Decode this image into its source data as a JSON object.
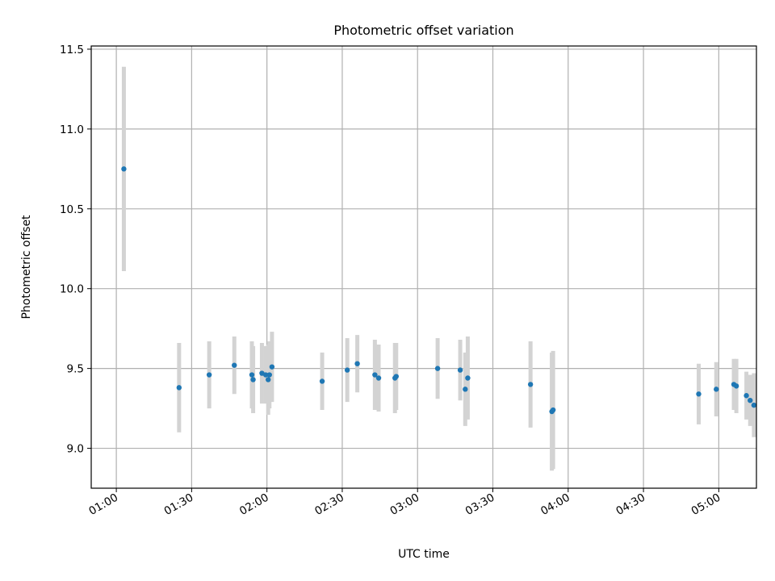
{
  "chart_data": {
    "type": "scatter",
    "title": "Photometric offset variation",
    "xlabel": "UTC time",
    "ylabel": "Photometric offset",
    "x_tick_labels": [
      "01:00",
      "01:30",
      "02:00",
      "02:30",
      "03:00",
      "03:30",
      "04:00",
      "04:30",
      "05:00"
    ],
    "y_tick_labels": [
      "9.0",
      "9.5",
      "10.0",
      "10.5",
      "11.0",
      "11.5"
    ],
    "xlim": [
      "00:50",
      "05:15"
    ],
    "ylim": [
      8.75,
      11.52
    ],
    "grid": true,
    "legend": "none",
    "colors": {
      "marker": "#1f77b4",
      "errorbar": "#d3d3d3",
      "grid": "#b0b0b0"
    },
    "points": [
      {
        "t": "01:03",
        "y": 10.75,
        "err": 0.64
      },
      {
        "t": "01:25",
        "y": 9.38,
        "err": 0.28
      },
      {
        "t": "01:37",
        "y": 9.46,
        "err": 0.21
      },
      {
        "t": "01:47",
        "y": 9.52,
        "err": 0.18
      },
      {
        "t": "01:54",
        "y": 9.46,
        "err": 0.21
      },
      {
        "t": "01:54.5",
        "y": 9.43,
        "err": 0.21
      },
      {
        "t": "01:58",
        "y": 9.47,
        "err": 0.19
      },
      {
        "t": "01:59.5",
        "y": 9.46,
        "err": 0.18
      },
      {
        "t": "02:00.5",
        "y": 9.43,
        "err": 0.22
      },
      {
        "t": "02:01",
        "y": 9.46,
        "err": 0.21
      },
      {
        "t": "02:02",
        "y": 9.51,
        "err": 0.22
      },
      {
        "t": "02:22",
        "y": 9.42,
        "err": 0.18
      },
      {
        "t": "02:32",
        "y": 9.49,
        "err": 0.2
      },
      {
        "t": "02:36",
        "y": 9.53,
        "err": 0.18
      },
      {
        "t": "02:43",
        "y": 9.46,
        "err": 0.22
      },
      {
        "t": "02:44.5",
        "y": 9.44,
        "err": 0.21
      },
      {
        "t": "02:51",
        "y": 9.44,
        "err": 0.22
      },
      {
        "t": "02:51.5",
        "y": 9.45,
        "err": 0.21
      },
      {
        "t": "03:08",
        "y": 9.5,
        "err": 0.19
      },
      {
        "t": "03:17",
        "y": 9.49,
        "err": 0.19
      },
      {
        "t": "03:19",
        "y": 9.37,
        "err": 0.23
      },
      {
        "t": "03:20",
        "y": 9.44,
        "err": 0.26
      },
      {
        "t": "03:45",
        "y": 9.4,
        "err": 0.27
      },
      {
        "t": "03:53.5",
        "y": 9.23,
        "err": 0.37
      },
      {
        "t": "03:54",
        "y": 9.24,
        "err": 0.37
      },
      {
        "t": "04:52",
        "y": 9.34,
        "err": 0.19
      },
      {
        "t": "04:59",
        "y": 9.37,
        "err": 0.17
      },
      {
        "t": "05:06",
        "y": 9.4,
        "err": 0.16
      },
      {
        "t": "05:07",
        "y": 9.39,
        "err": 0.17
      },
      {
        "t": "05:11",
        "y": 9.33,
        "err": 0.15
      },
      {
        "t": "05:12.5",
        "y": 9.3,
        "err": 0.16
      },
      {
        "t": "05:14",
        "y": 9.27,
        "err": 0.2
      }
    ]
  }
}
